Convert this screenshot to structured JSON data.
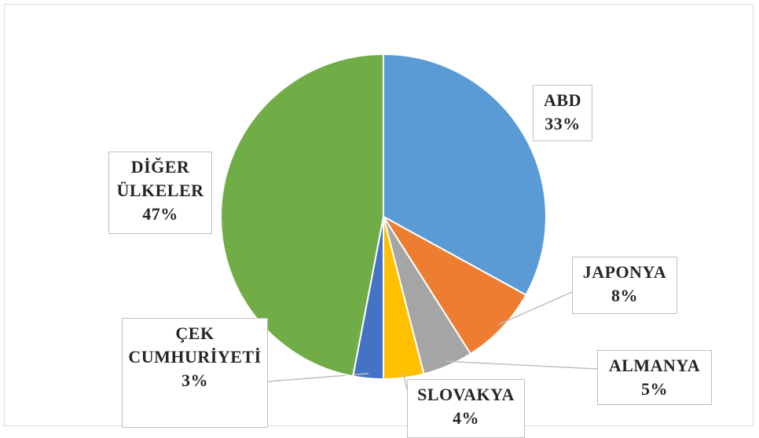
{
  "chart_data": {
    "type": "pie",
    "categories": [
      "ABD",
      "JAPONYA",
      "ALMANYA",
      "SLOVAKYA",
      "ÇEK CUMHURİYETİ",
      "DİĞER ÜLKELER"
    ],
    "values": [
      33,
      8,
      5,
      4,
      3,
      47
    ],
    "value_labels": [
      "33%",
      "8%",
      "5%",
      "4%",
      "3%",
      "47%"
    ],
    "colors": [
      "#5b9bd5",
      "#ed7d31",
      "#a5a5a5",
      "#ffc000",
      "#4472c4",
      "#70ad47"
    ]
  }
}
